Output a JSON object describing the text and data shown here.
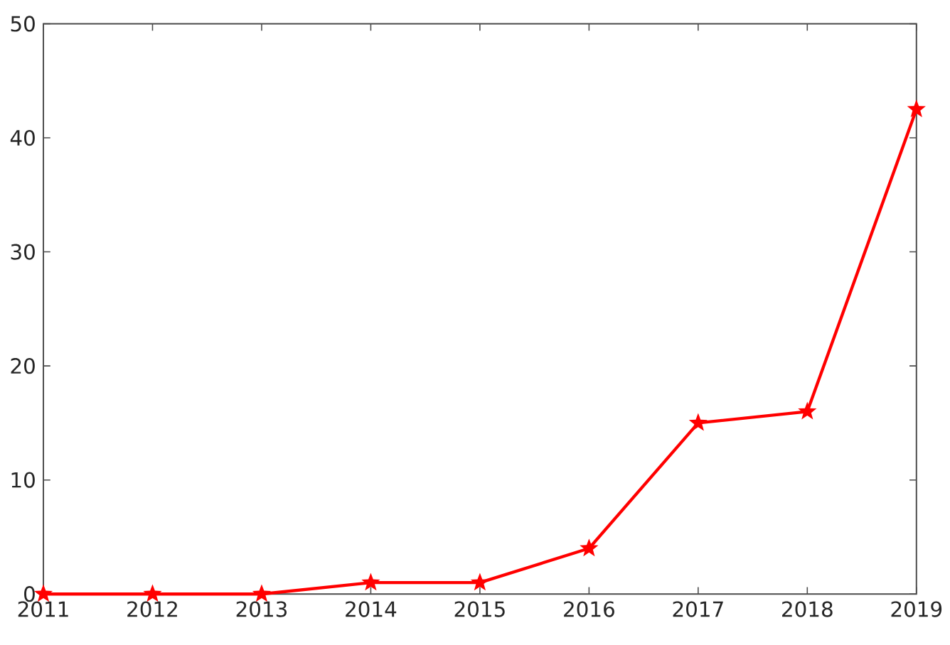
{
  "chart_data": {
    "type": "line",
    "x": [
      2011,
      2012,
      2013,
      2014,
      2015,
      2016,
      2017,
      2018,
      2019
    ],
    "series": [
      {
        "color": "#ff0000",
        "values": [
          0,
          0,
          0,
          1,
          1,
          4,
          15,
          16,
          42.5
        ]
      }
    ],
    "xlim": [
      2011,
      2019
    ],
    "xticks": [
      2011,
      2012,
      2013,
      2014,
      2015,
      2016,
      2017,
      2018,
      2019
    ],
    "ylim": [
      0,
      50
    ],
    "yticks": [
      0,
      10,
      20,
      30,
      40,
      50
    ],
    "marker": "star",
    "line_style": "solid",
    "grid": false
  }
}
